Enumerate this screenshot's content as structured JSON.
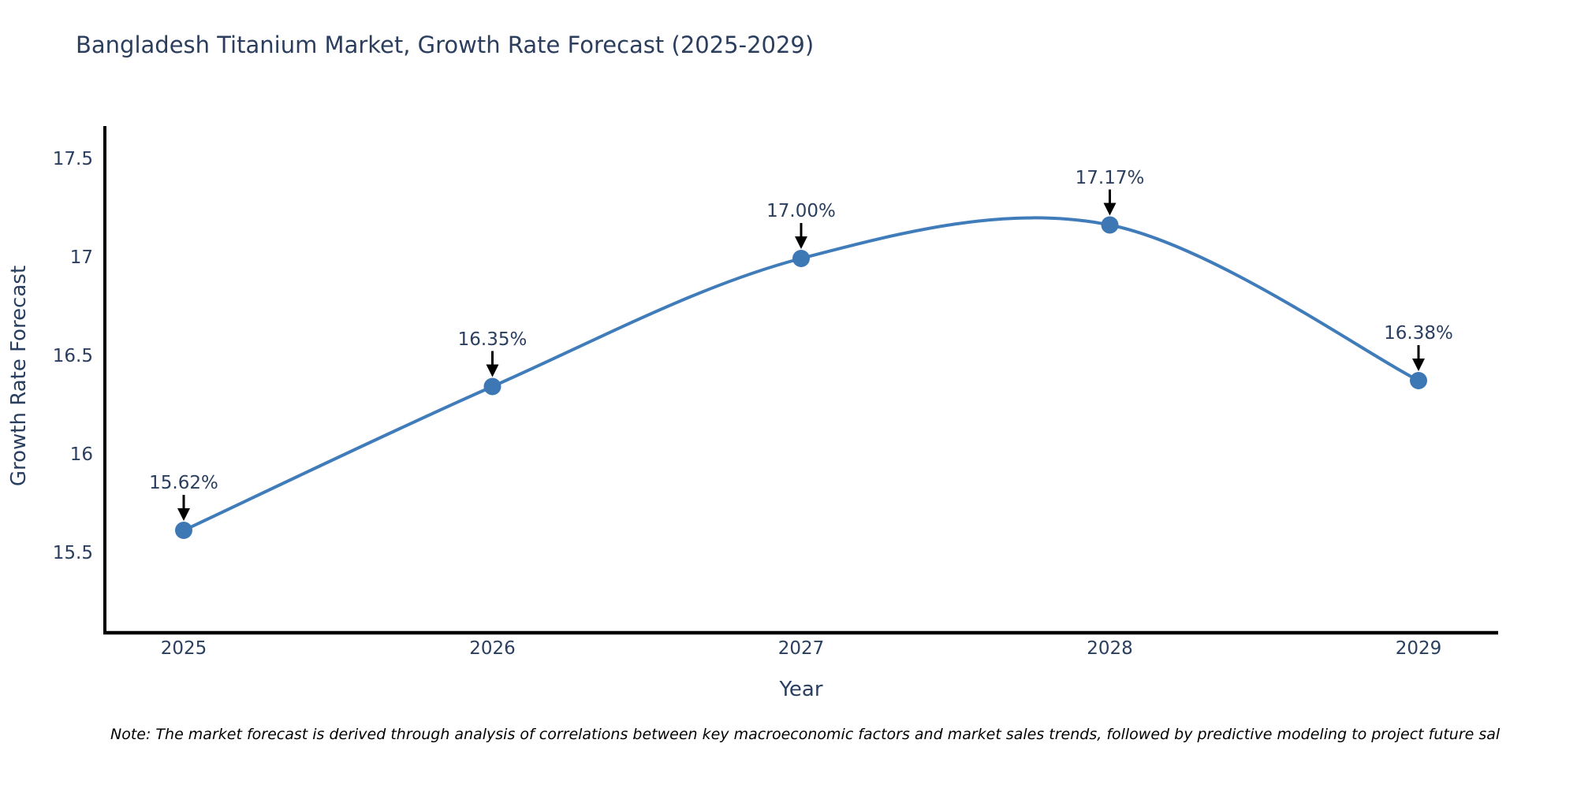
{
  "chart": {
    "title": "Bangladesh Titanium Market, Growth Rate Forecast (2025-2029)",
    "xlabel": "Year",
    "ylabel": "Growth Rate Forecast",
    "note": "Note: The market forecast is derived through analysis of correlations between key macroeconomic factors and market sales trends, followed by predictive modeling to project future sal"
  },
  "chart_data": {
    "type": "line",
    "line_shape": "spline",
    "title": "Bangladesh Titanium Market, Growth Rate Forecast (2025-2029)",
    "xlabel": "Year",
    "ylabel": "Growth Rate Forecast",
    "x": [
      2025,
      2026,
      2027,
      2028,
      2029
    ],
    "values": [
      15.62,
      16.35,
      17.0,
      17.17,
      16.38
    ],
    "point_labels": [
      "15.62%",
      "16.35%",
      "17.00%",
      "17.17%",
      "16.38%"
    ],
    "xtick_labels": [
      "2025",
      "2026",
      "2027",
      "2028",
      "2029"
    ],
    "ytick_values": [
      15.5,
      16,
      16.5,
      17,
      17.5
    ],
    "ytick_labels": [
      "15.5",
      "16",
      "16.5",
      "17",
      "17.5"
    ],
    "ylim": [
      15.09,
      17.67
    ],
    "grid": false,
    "legend": "none",
    "markers": true,
    "annotations_arrows": true,
    "colors": {
      "line": "#3f7cb9",
      "marker": "#3d78b4",
      "text": "#2a3f5f",
      "title_text": "#2b3e5d",
      "arrow": "#000000",
      "axis": "#000000",
      "background": "#ffffff"
    }
  }
}
